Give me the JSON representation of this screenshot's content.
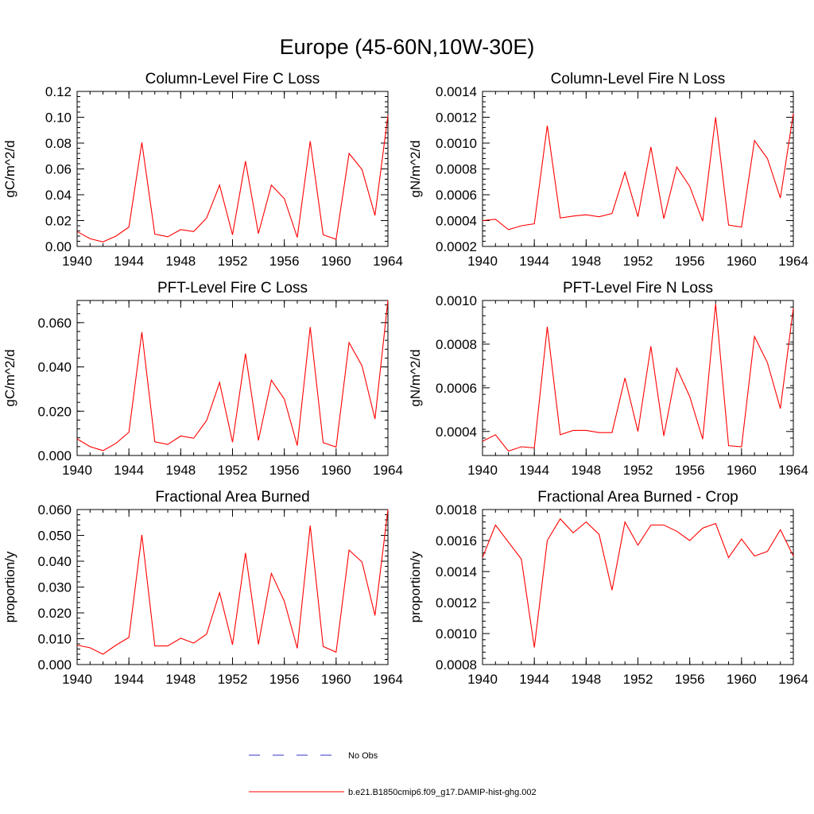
{
  "figure": {
    "title": "Europe (45-60N,10W-30E)"
  },
  "legend": {
    "items": [
      {
        "label": "No Obs",
        "color": "#3333cc",
        "dashed": true
      },
      {
        "label": "b.e21.B1850cmip6.f09_g17.DAMIP-hist-ghg.002",
        "color": "#ff0000",
        "dashed": false
      }
    ]
  },
  "chart_data": [
    {
      "type": "line",
      "title": "Column-Level Fire C Loss",
      "ylabel": "gC/m^2/d",
      "xlim": [
        1940,
        1964
      ],
      "ylim": [
        0.0,
        0.12
      ],
      "xticks": [
        1940,
        1944,
        1948,
        1952,
        1956,
        1960,
        1964
      ],
      "yticks": [
        "0.00",
        "0.02",
        "0.04",
        "0.06",
        "0.08",
        "0.10",
        "0.12"
      ],
      "x": [
        1940,
        1941,
        1942,
        1943,
        1944,
        1945,
        1946,
        1947,
        1948,
        1949,
        1950,
        1951,
        1952,
        1953,
        1954,
        1955,
        1956,
        1957,
        1958,
        1959,
        1960,
        1961,
        1962,
        1963,
        1964
      ],
      "series": [
        {
          "name": "b.e21.B1850cmip6.f09_g17.DAMIP-hist-ghg.002",
          "color": "#ff0000",
          "values": [
            0.0115,
            0.006,
            0.0035,
            0.008,
            0.015,
            0.0805,
            0.0095,
            0.0075,
            0.013,
            0.0115,
            0.022,
            0.0475,
            0.009,
            0.066,
            0.01,
            0.0475,
            0.037,
            0.007,
            0.0815,
            0.009,
            0.0055,
            0.072,
            0.0595,
            0.024,
            0.1015
          ]
        }
      ]
    },
    {
      "type": "line",
      "title": "Column-Level Fire N Loss",
      "ylabel": "gN/m^2/d",
      "xlim": [
        1940,
        1964
      ],
      "ylim": [
        0.0002,
        0.0014
      ],
      "xticks": [
        1940,
        1944,
        1948,
        1952,
        1956,
        1960,
        1964
      ],
      "yticks": [
        "0.0002",
        "0.0004",
        "0.0006",
        "0.0008",
        "0.0010",
        "0.0012",
        "0.0014"
      ],
      "x": [
        1940,
        1941,
        1942,
        1943,
        1944,
        1945,
        1946,
        1947,
        1948,
        1949,
        1950,
        1951,
        1952,
        1953,
        1954,
        1955,
        1956,
        1957,
        1958,
        1959,
        1960,
        1961,
        1962,
        1963,
        1964
      ],
      "series": [
        {
          "name": "b.e21.B1850cmip6.f09_g17.DAMIP-hist-ghg.002",
          "color": "#ff0000",
          "values": [
            0.0004,
            0.00041,
            0.00033,
            0.00036,
            0.000375,
            0.001135,
            0.00042,
            0.000435,
            0.000445,
            0.00043,
            0.000455,
            0.000775,
            0.00043,
            0.00097,
            0.000415,
            0.000815,
            0.000665,
            0.000395,
            0.0012,
            0.000365,
            0.00035,
            0.00102,
            0.00088,
            0.000575,
            0.00123
          ]
        }
      ]
    },
    {
      "type": "line",
      "title": "PFT-Level Fire C Loss",
      "ylabel": "gC/m^2/d",
      "xlim": [
        1940,
        1964
      ],
      "ylim": [
        0.0,
        0.07
      ],
      "xticks": [
        1940,
        1944,
        1948,
        1952,
        1956,
        1960,
        1964
      ],
      "yticks": [
        "0.000",
        "0.020",
        "0.040",
        "0.060"
      ],
      "x": [
        1940,
        1941,
        1942,
        1943,
        1944,
        1945,
        1946,
        1947,
        1948,
        1949,
        1950,
        1951,
        1952,
        1953,
        1954,
        1955,
        1956,
        1957,
        1958,
        1959,
        1960,
        1961,
        1962,
        1963,
        1964
      ],
      "series": [
        {
          "name": "b.e21.B1850cmip6.f09_g17.DAMIP-hist-ghg.002",
          "color": "#ff0000",
          "values": [
            0.0075,
            0.004,
            0.0022,
            0.0055,
            0.0105,
            0.0557,
            0.0062,
            0.005,
            0.0088,
            0.0078,
            0.0158,
            0.033,
            0.006,
            0.046,
            0.0068,
            0.034,
            0.0255,
            0.0045,
            0.058,
            0.0058,
            0.0038,
            0.051,
            0.0405,
            0.0165,
            0.07
          ]
        }
      ]
    },
    {
      "type": "line",
      "title": "PFT-Level Fire N Loss",
      "ylabel": "gN/m^2/d",
      "xlim": [
        1940,
        1964
      ],
      "ylim": [
        0.00029,
        0.001
      ],
      "xticks": [
        1940,
        1944,
        1948,
        1952,
        1956,
        1960,
        1964
      ],
      "yticks": [
        "0.0004",
        "0.0006",
        "0.0008",
        "0.0010"
      ],
      "x": [
        1940,
        1941,
        1942,
        1943,
        1944,
        1945,
        1946,
        1947,
        1948,
        1949,
        1950,
        1951,
        1952,
        1953,
        1954,
        1955,
        1956,
        1957,
        1958,
        1959,
        1960,
        1961,
        1962,
        1963,
        1964
      ],
      "series": [
        {
          "name": "b.e21.B1850cmip6.f09_g17.DAMIP-hist-ghg.002",
          "color": "#ff0000",
          "values": [
            0.000355,
            0.000385,
            0.00031,
            0.00033,
            0.000325,
            0.00088,
            0.000385,
            0.000405,
            0.000405,
            0.000395,
            0.000395,
            0.000645,
            0.0004,
            0.00079,
            0.00038,
            0.00069,
            0.00056,
            0.000365,
            0.000985,
            0.000335,
            0.00033,
            0.000835,
            0.000715,
            0.000505,
            0.000965
          ]
        }
      ]
    },
    {
      "type": "line",
      "title": "Fractional Area Burned",
      "ylabel": "proportion/y",
      "xlim": [
        1940,
        1964
      ],
      "ylim": [
        0.0,
        0.06
      ],
      "xticks": [
        1940,
        1944,
        1948,
        1952,
        1956,
        1960,
        1964
      ],
      "yticks": [
        "0.000",
        "0.010",
        "0.020",
        "0.030",
        "0.040",
        "0.050",
        "0.060"
      ],
      "x": [
        1940,
        1941,
        1942,
        1943,
        1944,
        1945,
        1946,
        1947,
        1948,
        1949,
        1950,
        1951,
        1952,
        1953,
        1954,
        1955,
        1956,
        1957,
        1958,
        1959,
        1960,
        1961,
        1962,
        1963,
        1964
      ],
      "series": [
        {
          "name": "b.e21.B1850cmip6.f09_g17.DAMIP-hist-ghg.002",
          "color": "#ff0000",
          "values": [
            0.0075,
            0.0065,
            0.004,
            0.0075,
            0.0105,
            0.0502,
            0.0072,
            0.0072,
            0.0102,
            0.0083,
            0.0118,
            0.0278,
            0.0077,
            0.0432,
            0.0078,
            0.0353,
            0.0245,
            0.0063,
            0.0538,
            0.007,
            0.0048,
            0.0443,
            0.0397,
            0.019,
            0.06
          ]
        }
      ]
    },
    {
      "type": "line",
      "title": "Fractional Area Burned - Crop",
      "ylabel": "proportion/y",
      "xlim": [
        1940,
        1964
      ],
      "ylim": [
        0.0008,
        0.0018
      ],
      "xticks": [
        1940,
        1944,
        1948,
        1952,
        1956,
        1960,
        1964
      ],
      "yticks": [
        "0.0008",
        "0.0010",
        "0.0012",
        "0.0014",
        "0.0016",
        "0.0018"
      ],
      "x": [
        1940,
        1941,
        1942,
        1943,
        1944,
        1945,
        1946,
        1947,
        1948,
        1949,
        1950,
        1951,
        1952,
        1953,
        1954,
        1955,
        1956,
        1957,
        1958,
        1959,
        1960,
        1961,
        1962,
        1963,
        1964
      ],
      "series": [
        {
          "name": "b.e21.B1850cmip6.f09_g17.DAMIP-hist-ghg.002",
          "color": "#ff0000",
          "values": [
            0.00149,
            0.0017,
            0.00159,
            0.00148,
            0.00091,
            0.0016,
            0.00174,
            0.00165,
            0.00172,
            0.00164,
            0.00128,
            0.00172,
            0.00157,
            0.0017,
            0.0017,
            0.00166,
            0.0016,
            0.00168,
            0.00171,
            0.00149,
            0.00161,
            0.0015,
            0.00153,
            0.00167,
            0.0015
          ]
        }
      ]
    }
  ]
}
